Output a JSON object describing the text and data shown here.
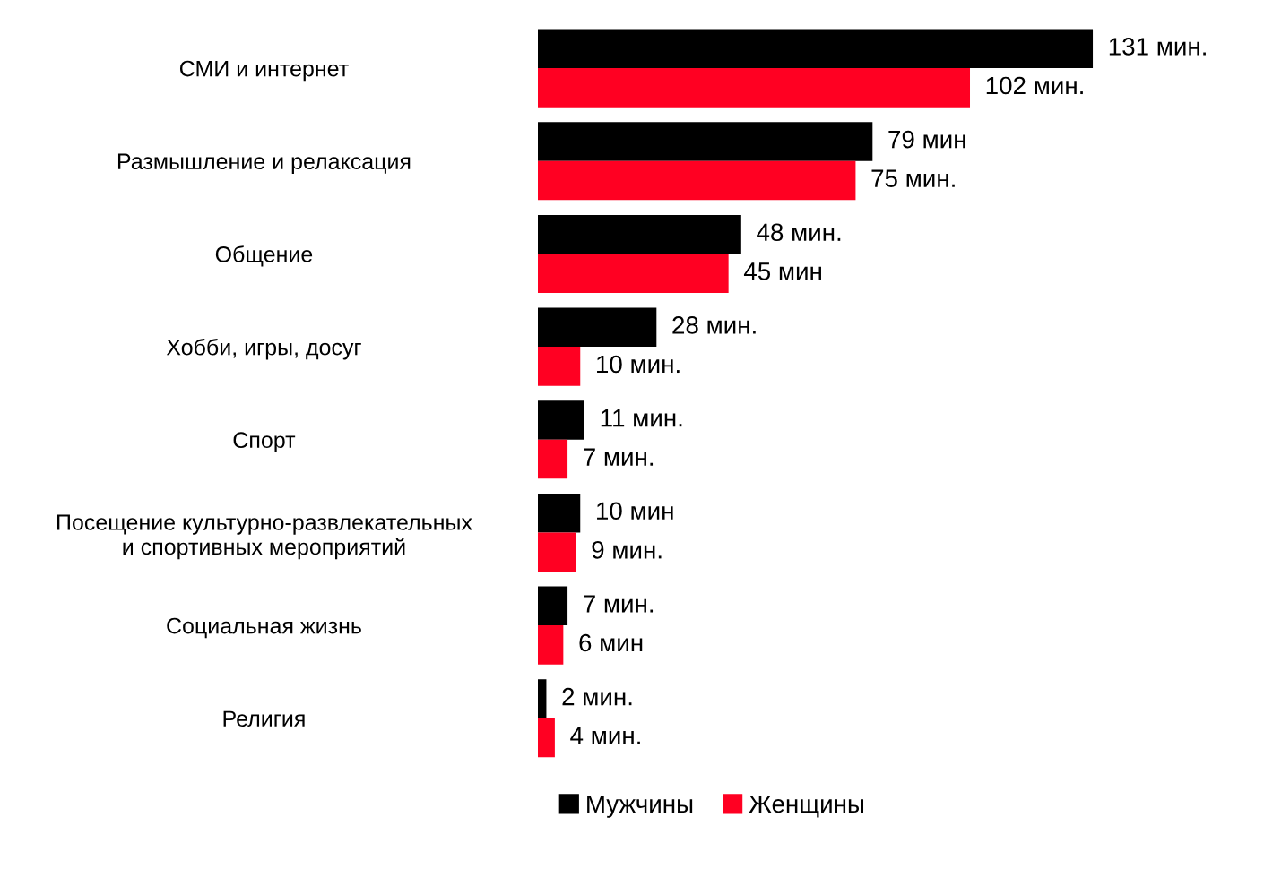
{
  "chart_data": {
    "type": "bar",
    "orientation": "horizontal",
    "categories": [
      "СМИ и интернет",
      "Размышление и релаксация",
      "Общение",
      "Хобби, игры, досуг",
      "Спорт",
      "Посещение культурно-развлекательных\nи спортивных мероприятий",
      "Социальная жизнь",
      "Религия"
    ],
    "series": [
      {
        "name": "Мужчины",
        "color": "#000000",
        "values": [
          131,
          79,
          48,
          28,
          11,
          10,
          7,
          2
        ],
        "value_labels": [
          "131 мин.",
          "79 мин",
          "48 мин.",
          "28 мин.",
          "11 мин.",
          "10 мин",
          "7 мин.",
          "2 мин."
        ]
      },
      {
        "name": "Женщины",
        "color": "#ff0022",
        "values": [
          102,
          75,
          45,
          10,
          7,
          9,
          6,
          4
        ],
        "value_labels": [
          "102 мин.",
          "75 мин.",
          "45 мин",
          "10 мин.",
          "7 мин.",
          "9 мин.",
          "6 мин",
          "4 мин."
        ]
      }
    ],
    "tick_labels": "y",
    "legend": "bottom",
    "grid": false
  }
}
